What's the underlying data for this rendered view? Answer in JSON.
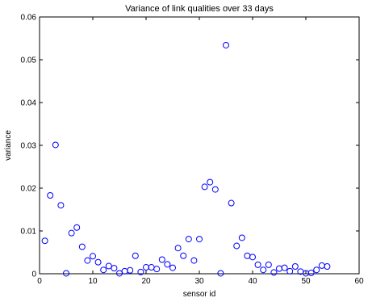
{
  "chart_data": {
    "type": "scatter",
    "title": "Variance of link qualities over 33 days",
    "xlabel": "sensor id",
    "ylabel": "variance",
    "xlim": [
      0,
      60
    ],
    "ylim": [
      0,
      0.06
    ],
    "xticks": [
      0,
      10,
      20,
      30,
      40,
      50,
      60
    ],
    "yticks": [
      0,
      0.01,
      0.02,
      0.03,
      0.04,
      0.05,
      0.06
    ],
    "ytick_labels": [
      "0",
      "0.01",
      "0.02",
      "0.03",
      "0.04",
      "0.05",
      "0.06"
    ],
    "grid": false,
    "marker": "circle-open",
    "color": "#0000ff",
    "x": [
      1,
      2,
      3,
      4,
      5,
      6,
      7,
      8,
      9,
      10,
      11,
      12,
      13,
      14,
      15,
      16,
      17,
      18,
      19,
      20,
      21,
      22,
      23,
      24,
      25,
      26,
      27,
      28,
      29,
      30,
      31,
      32,
      33,
      34,
      35,
      36,
      37,
      38,
      39,
      40,
      41,
      42,
      43,
      44,
      45,
      46,
      47,
      48,
      49,
      50,
      51,
      52,
      53,
      54
    ],
    "y": [
      0.0077,
      0.0183,
      0.0301,
      0.016,
      0.0001,
      0.0095,
      0.0108,
      0.0063,
      0.0031,
      0.0041,
      0.0027,
      0.0009,
      0.0018,
      0.0013,
      0.0001,
      0.0006,
      0.0008,
      0.0042,
      0.0004,
      0.0015,
      0.0015,
      0.0011,
      0.0033,
      0.0022,
      0.0014,
      0.006,
      0.0042,
      0.0081,
      0.0031,
      0.0081,
      0.0203,
      0.0214,
      0.0197,
      0.0001,
      0.0534,
      0.0165,
      0.0065,
      0.0084,
      0.0042,
      0.0039,
      0.0021,
      0.0009,
      0.0021,
      0.0003,
      0.0012,
      0.0014,
      0.0006,
      0.0017,
      0.0005,
      0.0001,
      0.0002,
      0.0009,
      0.0019,
      0.0017
    ]
  }
}
